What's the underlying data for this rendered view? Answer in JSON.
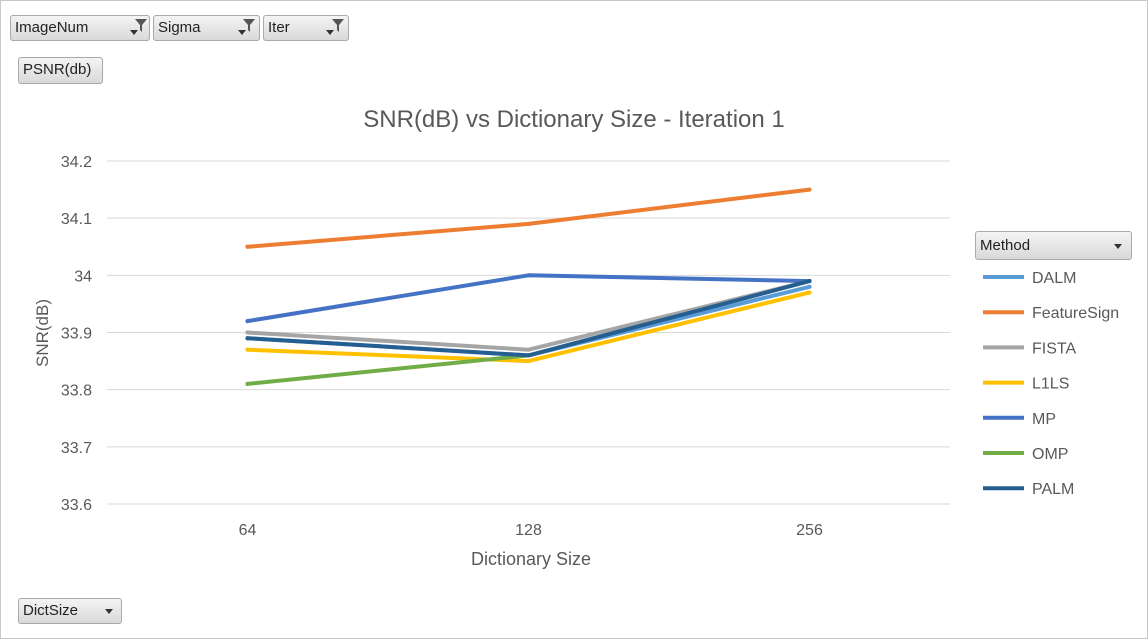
{
  "filter_fields": [
    {
      "label": "ImageNum"
    },
    {
      "label": "Sigma"
    },
    {
      "label": "Iter"
    }
  ],
  "value_field": {
    "label": "PSNR(db)"
  },
  "axis_field": {
    "label": "DictSize"
  },
  "legend_field": {
    "label": "Method"
  },
  "chart_data": {
    "type": "line",
    "title": "SNR(dB) vs Dictionary Size - Iteration 1",
    "xlabel": "Dictionary Size",
    "ylabel": "SNR(dB)",
    "categories": [
      "64",
      "128",
      "256"
    ],
    "ylim": [
      33.6,
      34.2
    ],
    "yticks": [
      "33.6",
      "33.7",
      "33.8",
      "33.9",
      "34",
      "34.1",
      "34.2"
    ],
    "grid": true,
    "legend_position": "right",
    "series": [
      {
        "name": "DALM",
        "color": "#5b9bd5",
        "values": [
          33.89,
          33.86,
          33.98
        ]
      },
      {
        "name": "FeatureSign",
        "color": "#ed7d31",
        "values": [
          34.05,
          34.09,
          34.15
        ]
      },
      {
        "name": "FISTA",
        "color": "#a5a5a5",
        "values": [
          33.9,
          33.87,
          33.99
        ]
      },
      {
        "name": "L1LS",
        "color": "#ffc000",
        "values": [
          33.87,
          33.85,
          33.97
        ]
      },
      {
        "name": "MP",
        "color": "#4472c4",
        "values": [
          33.92,
          34.0,
          33.99
        ]
      },
      {
        "name": "OMP",
        "color": "#70ad47",
        "values": [
          33.81,
          33.86,
          null
        ]
      },
      {
        "name": "PALM",
        "color": "#255e91",
        "values": [
          33.89,
          33.86,
          33.99
        ]
      }
    ]
  }
}
